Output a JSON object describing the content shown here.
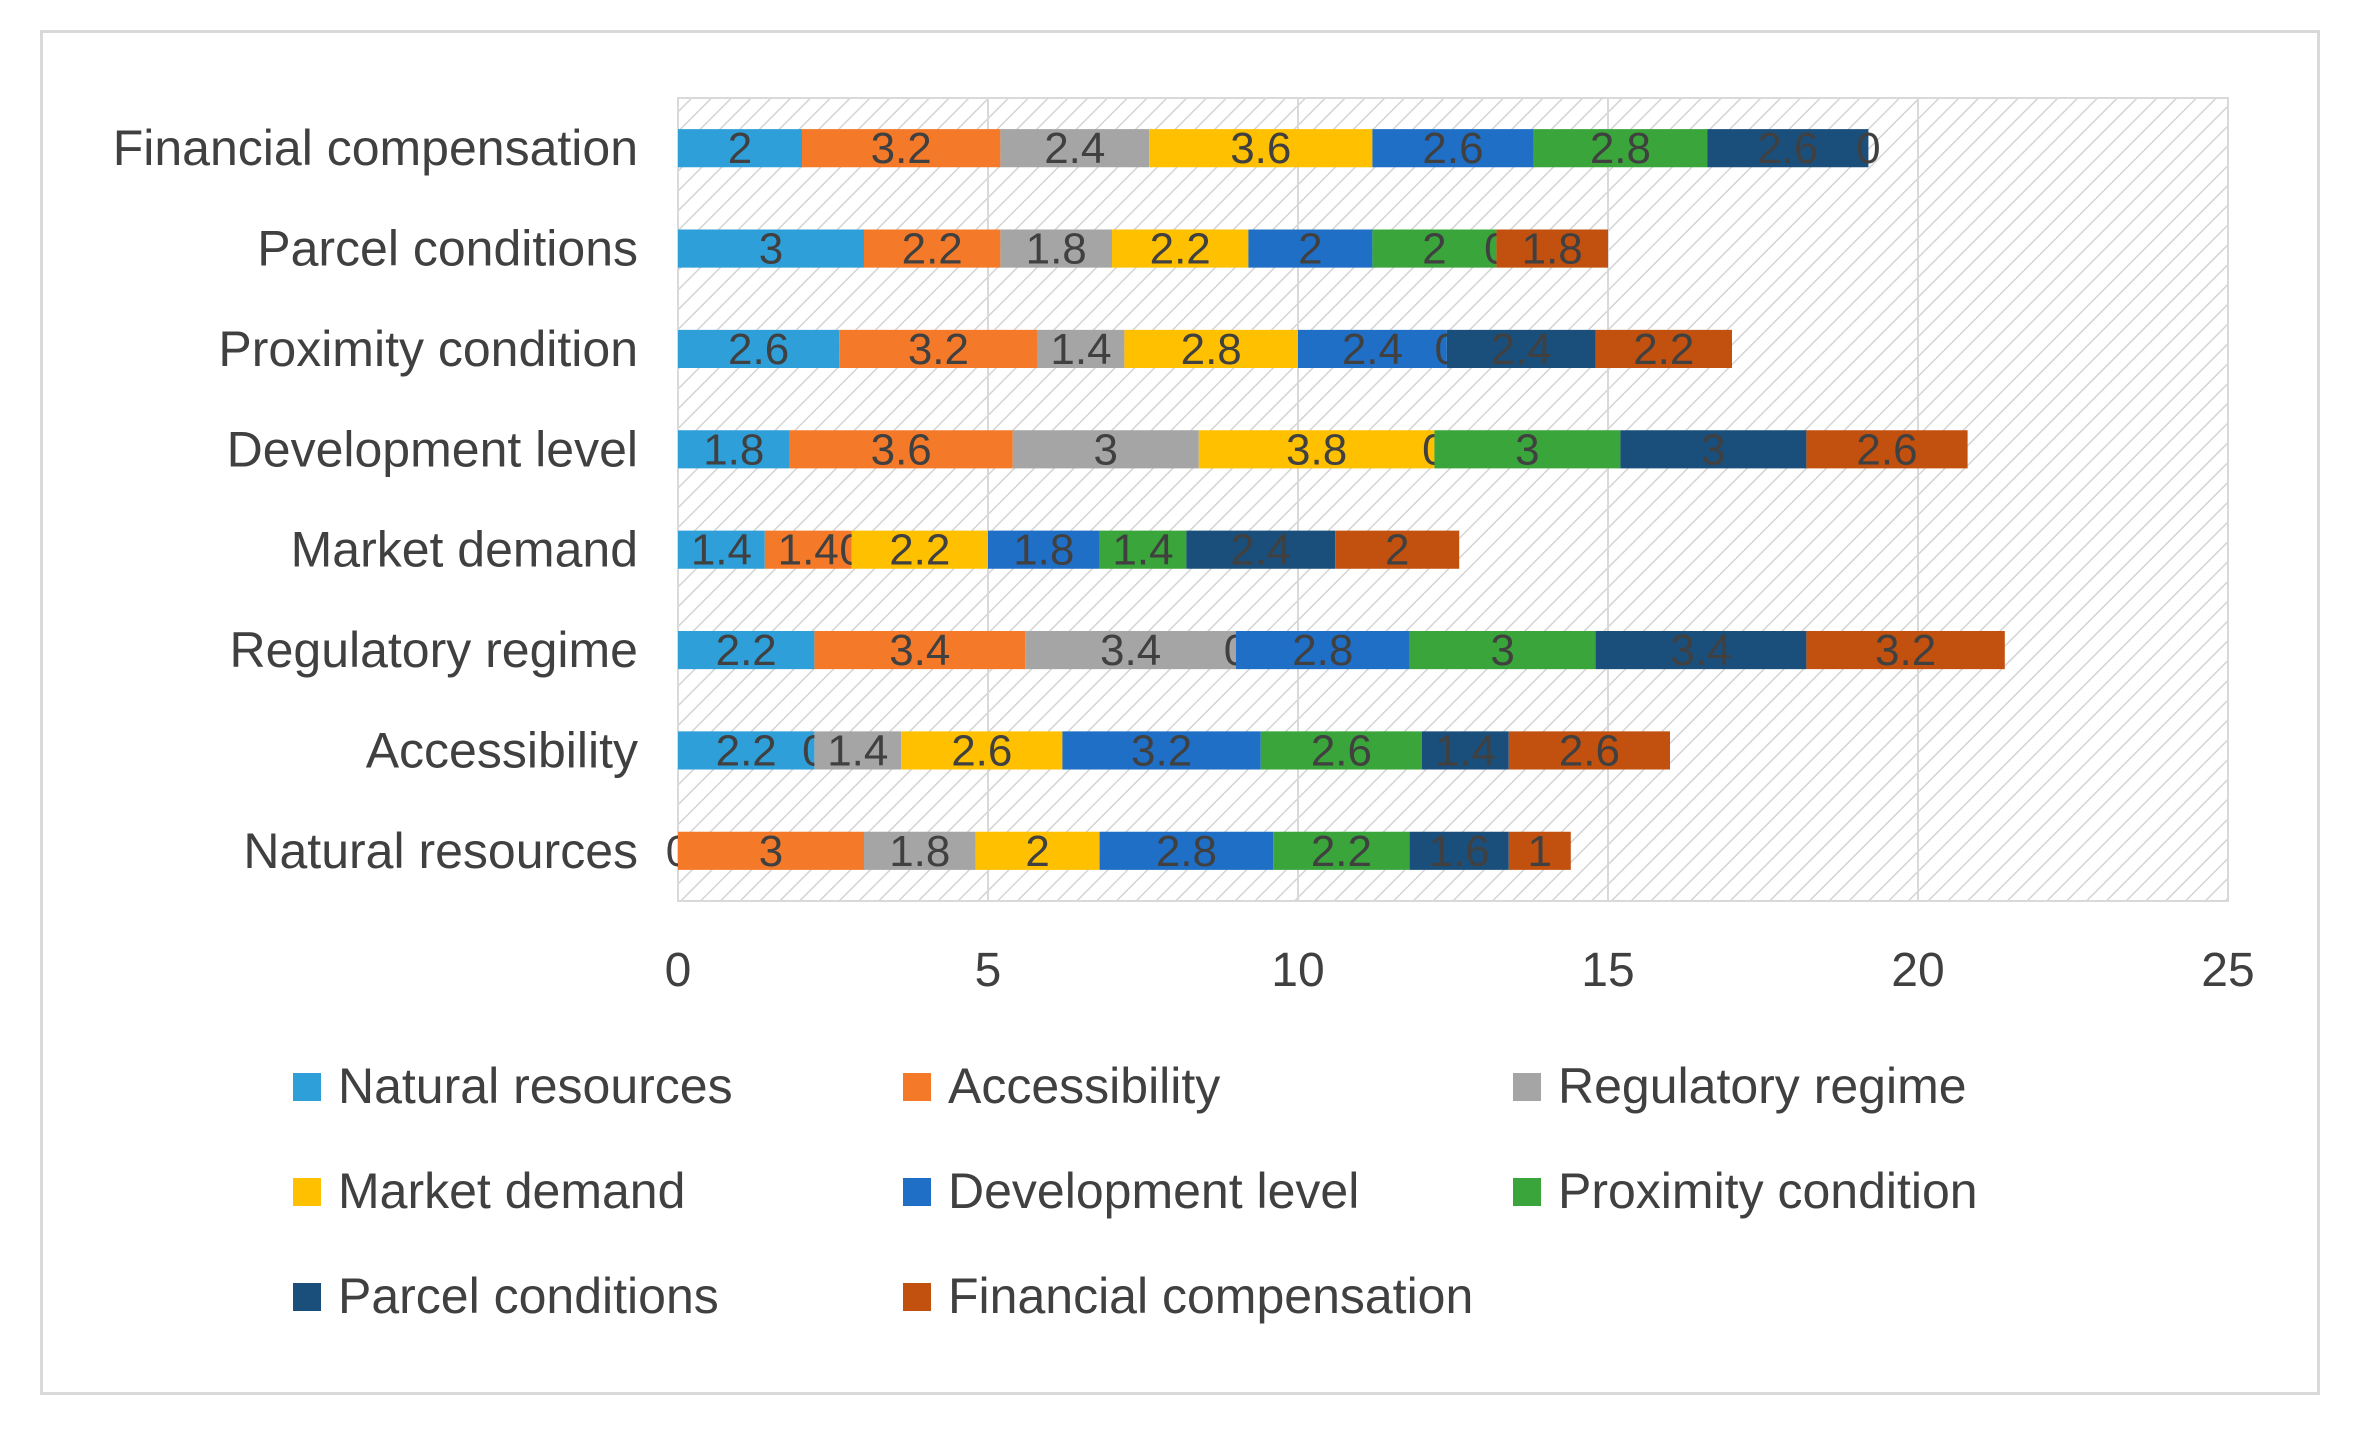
{
  "chart_data": {
    "type": "bar",
    "orientation": "horizontal",
    "stacked": true,
    "title": "",
    "xlabel": "",
    "ylabel": "",
    "xlim": [
      0,
      25
    ],
    "xticks": [
      0,
      5,
      10,
      15,
      20,
      25
    ],
    "grid": true,
    "legend_position": "bottom",
    "categories": [
      "Financial compensation",
      "Parcel conditions",
      "Proximity condition",
      "Development level",
      "Market demand",
      "Regulatory regime",
      "Accessibility",
      "Natural resources"
    ],
    "series": [
      {
        "name": "Natural resources",
        "color": "#2e9fd8",
        "values": [
          2,
          3,
          2.6,
          1.8,
          1.4,
          2.2,
          2.2,
          0
        ]
      },
      {
        "name": "Accessibility",
        "color": "#f47a2a",
        "values": [
          3.2,
          2.2,
          3.2,
          3.6,
          1.4,
          3.4,
          0,
          3
        ]
      },
      {
        "name": "Regulatory regime",
        "color": "#a5a5a5",
        "values": [
          2.4,
          1.8,
          1.4,
          3,
          0,
          3.4,
          1.4,
          1.8
        ]
      },
      {
        "name": "Market demand",
        "color": "#ffc000",
        "values": [
          3.6,
          2.2,
          2.8,
          3.8,
          2.2,
          0,
          2.6,
          2
        ]
      },
      {
        "name": "Development level",
        "color": "#1f6fc6",
        "values": [
          2.6,
          2,
          2.4,
          0,
          1.8,
          2.8,
          3.2,
          2.8
        ]
      },
      {
        "name": "Proximity condition",
        "color": "#3aa53a",
        "values": [
          2.8,
          2,
          0,
          3,
          1.4,
          3,
          2.6,
          2.2
        ]
      },
      {
        "name": "Parcel conditions",
        "color": "#1a4f7c",
        "values": [
          2.6,
          0,
          2.4,
          3,
          2.4,
          3.4,
          1.4,
          1.6
        ]
      },
      {
        "name": "Financial compensation",
        "color": "#c2510f",
        "values": [
          0,
          1.8,
          2.2,
          2.6,
          2,
          3.2,
          2.6,
          1
        ]
      }
    ]
  }
}
